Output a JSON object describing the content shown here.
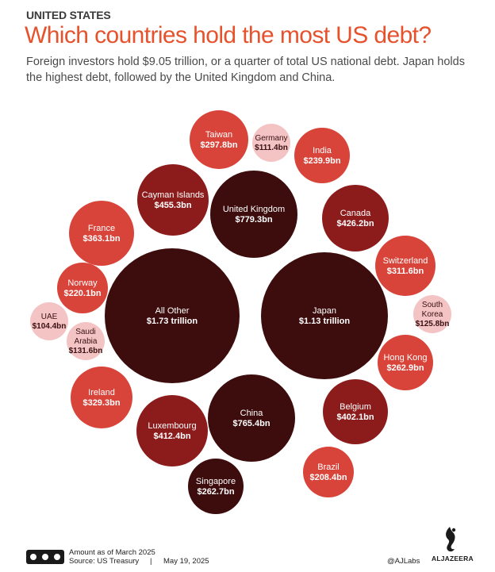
{
  "header": {
    "kicker": "UNITED STATES",
    "title": "Which countries hold the most US debt?",
    "subtitle": "Foreign investors hold $9.05 trillion, or a quarter of total US national debt. Japan holds  the highest debt, followed by the United Kingdom and China."
  },
  "chart_data": {
    "type": "bubble",
    "title": "Which countries hold the most US debt?",
    "unit": "US$",
    "colors": {
      "largest": "#3d0d0d",
      "large": "#8c1c1c",
      "medium": "#d9443a",
      "small": "#f4c4c4"
    },
    "bubbles": [
      {
        "name": "All Other",
        "label": "$1.73 trillion",
        "value": 1730,
        "tier": "largest"
      },
      {
        "name": "Japan",
        "label": "$1.13 trillion",
        "value": 1130,
        "tier": "largest"
      },
      {
        "name": "United Kingdom",
        "label": "$779.3bn",
        "value": 779.3,
        "tier": "largest"
      },
      {
        "name": "China",
        "label": "$765.4bn",
        "value": 765.4,
        "tier": "largest"
      },
      {
        "name": "Cayman Islands",
        "label": "$455.3bn",
        "value": 455.3,
        "tier": "large"
      },
      {
        "name": "Canada",
        "label": "$426.2bn",
        "value": 426.2,
        "tier": "large"
      },
      {
        "name": "Luxembourg",
        "label": "$412.4bn",
        "value": 412.4,
        "tier": "large"
      },
      {
        "name": "Belgium",
        "label": "$402.1bn",
        "value": 402.1,
        "tier": "large"
      },
      {
        "name": "France",
        "label": "$363.1bn",
        "value": 363.1,
        "tier": "medium"
      },
      {
        "name": "Ireland",
        "label": "$329.3bn",
        "value": 329.3,
        "tier": "medium"
      },
      {
        "name": "Switzerland",
        "label": "$311.6bn",
        "value": 311.6,
        "tier": "medium"
      },
      {
        "name": "Taiwan",
        "label": "$297.8bn",
        "value": 297.8,
        "tier": "medium"
      },
      {
        "name": "Hong Kong",
        "label": "$262.9bn",
        "value": 262.9,
        "tier": "medium"
      },
      {
        "name": "Singapore",
        "label": "$262.7bn",
        "value": 262.7,
        "tier": "largest"
      },
      {
        "name": "India",
        "label": "$239.9bn",
        "value": 239.9,
        "tier": "medium"
      },
      {
        "name": "Norway",
        "label": "$220.1bn",
        "value": 220.1,
        "tier": "medium"
      },
      {
        "name": "Brazil",
        "label": "$208.4bn",
        "value": 208.4,
        "tier": "medium"
      },
      {
        "name": "Saudi Arabia",
        "label": "$131.6bn",
        "value": 131.6,
        "tier": "small"
      },
      {
        "name": "South Korea",
        "label": "$125.8bn",
        "value": 125.8,
        "tier": "small"
      },
      {
        "name": "Germany",
        "label": "$111.4bn",
        "value": 111.4,
        "tier": "small"
      },
      {
        "name": "UAE",
        "label": "$104.4bn",
        "value": 104.4,
        "tier": "small"
      }
    ]
  },
  "footer": {
    "note": "Amount as of March 2025",
    "source": "Source: US Treasury",
    "separator": "|",
    "date": "May 19, 2025",
    "handle": "@AJLabs",
    "logo_text": "ALJAZEERA",
    "license_icon": "creative-commons-icon"
  }
}
